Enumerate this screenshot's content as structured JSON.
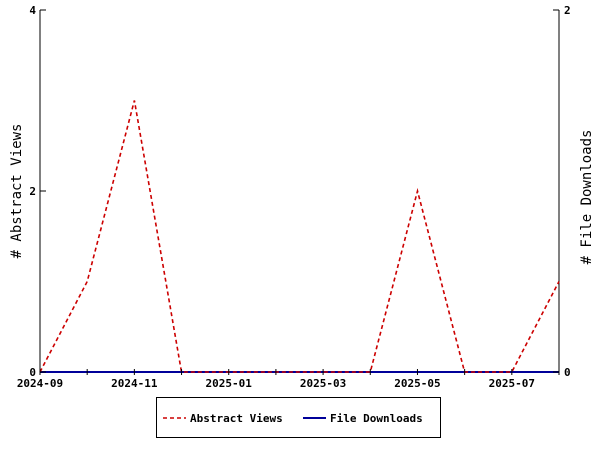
{
  "chart_data": {
    "type": "line",
    "x": [
      "2024-09",
      "2024-10",
      "2024-11",
      "2024-12",
      "2025-01",
      "2025-02",
      "2025-03",
      "2025-04",
      "2025-05",
      "2025-06",
      "2025-07",
      "2025-08"
    ],
    "x_tick_labels": [
      "2024-09",
      "2024-11",
      "2025-01",
      "2025-03",
      "2025-05",
      "2025-07"
    ],
    "ylabel": "# Abstract Views",
    "y2label": "# File Downloads",
    "ylim": [
      0,
      4
    ],
    "y_ticks": [
      "0",
      "2",
      "4"
    ],
    "y2lim": [
      0,
      2
    ],
    "y2_ticks": [
      "0",
      "2"
    ],
    "grid": false,
    "legend_position": "bottom",
    "series": [
      {
        "name": "Abstract Views",
        "axis": "left",
        "color": "#cc0000",
        "style": "dashed",
        "values": [
          0,
          1,
          3,
          0,
          0,
          0,
          0,
          0,
          2,
          0,
          0,
          1
        ]
      },
      {
        "name": "File Downloads",
        "axis": "right",
        "color": "#000099",
        "style": "solid",
        "values": [
          0,
          0,
          0,
          0,
          0,
          0,
          0,
          0,
          0,
          0,
          0,
          0
        ]
      }
    ]
  }
}
